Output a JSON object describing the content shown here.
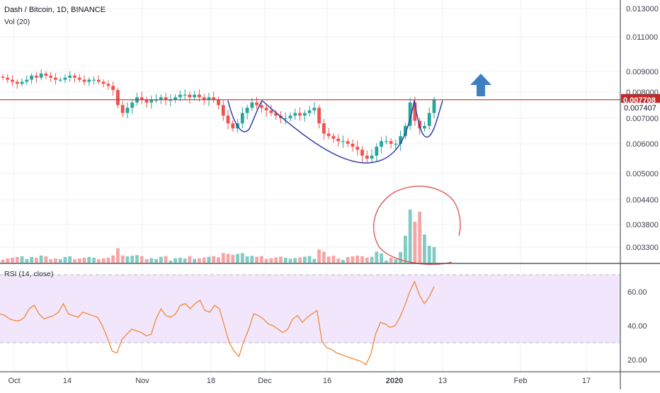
{
  "header": {
    "symbol": "Dash / Bitcoin, 1D, BINANCE",
    "volume_indicator": "Vol (20)",
    "rsi_indicator": "RSI (14, close)"
  },
  "colors": {
    "up_candle": "#26a69a",
    "down_candle": "#ef5350",
    "up_volume": "#80cbc4",
    "down_volume": "#f4a5a4",
    "resistance_line": "#c62828",
    "cup_pattern": "#2f3fa6",
    "annotation_circle": "#e05a5a",
    "arrow": "#3d7fc1",
    "rsi_line": "#f28a38",
    "rsi_band": "#f1e6fc",
    "price_tag": "#c62828"
  },
  "chart_data": [
    {
      "type": "candlestick",
      "title": "Dash / Bitcoin, 1D, BINANCE",
      "x_axis_labels": [
        "Oct",
        "14",
        "Nov",
        "18",
        "Dec",
        "16",
        "2020",
        "13",
        "Feb",
        "17"
      ],
      "y_axis_labels": [
        "0.013000",
        "0.011000",
        "0.009000",
        "0.008000",
        "0.007000",
        "0.006000",
        "0.005000",
        "0.004400",
        "0.003800",
        "0.003300"
      ],
      "price_tag_current": "0.007708",
      "price_tag_secondary": "0.007407",
      "resistance_level": 0.007708,
      "ohlc_close_approx": [
        0.0087,
        0.0086,
        0.0085,
        0.0084,
        0.0085,
        0.0086,
        0.0088,
        0.0087,
        0.0089,
        0.0088,
        0.0087,
        0.0086,
        0.0086,
        0.0087,
        0.0088,
        0.0087,
        0.0086,
        0.0085,
        0.0086,
        0.0086,
        0.0085,
        0.0084,
        0.0083,
        0.0081,
        0.0075,
        0.0072,
        0.0074,
        0.0076,
        0.0078,
        0.0077,
        0.0076,
        0.0077,
        0.0077,
        0.0078,
        0.0077,
        0.0077,
        0.0078,
        0.0079,
        0.0079,
        0.0078,
        0.0079,
        0.0078,
        0.0077,
        0.0078,
        0.0077,
        0.0075,
        0.0071,
        0.0068,
        0.0066,
        0.0068,
        0.0072,
        0.0074,
        0.0076,
        0.0075,
        0.0074,
        0.0073,
        0.0072,
        0.0071,
        0.007,
        0.007,
        0.0071,
        0.0072,
        0.0071,
        0.0072,
        0.0073,
        0.0074,
        0.0068,
        0.0064,
        0.0063,
        0.0062,
        0.0061,
        0.0061,
        0.006,
        0.0059,
        0.0058,
        0.0056,
        0.0055,
        0.0056,
        0.0059,
        0.0061,
        0.0061,
        0.006,
        0.006,
        0.0063,
        0.0067,
        0.0076,
        0.0069,
        0.0066,
        0.0067,
        0.0072,
        0.0077
      ]
    },
    {
      "type": "bar",
      "title": "Vol (20)"
    },
    {
      "type": "line",
      "title": "RSI (14, close)",
      "y_axis_labels": [
        "60.00",
        "40.00",
        "20.00"
      ],
      "band": [
        30,
        70
      ],
      "values_approx": [
        47,
        46,
        44,
        43,
        43,
        45,
        50,
        52,
        47,
        44,
        45,
        46,
        48,
        53,
        47,
        46,
        45,
        48,
        47,
        46,
        45,
        40,
        33,
        25,
        24,
        32,
        35,
        38,
        37,
        36,
        34,
        35,
        44,
        50,
        46,
        45,
        47,
        52,
        53,
        50,
        53,
        55,
        49,
        48,
        52,
        50,
        40,
        30,
        25,
        22,
        31,
        38,
        47,
        46,
        44,
        41,
        40,
        38,
        36,
        38,
        44,
        46,
        42,
        45,
        47,
        49,
        31,
        27,
        26,
        24,
        23,
        22,
        21,
        20,
        19,
        17,
        23,
        35,
        42,
        41,
        39,
        40,
        45,
        52,
        60,
        66,
        58,
        53,
        57,
        63
      ]
    }
  ]
}
